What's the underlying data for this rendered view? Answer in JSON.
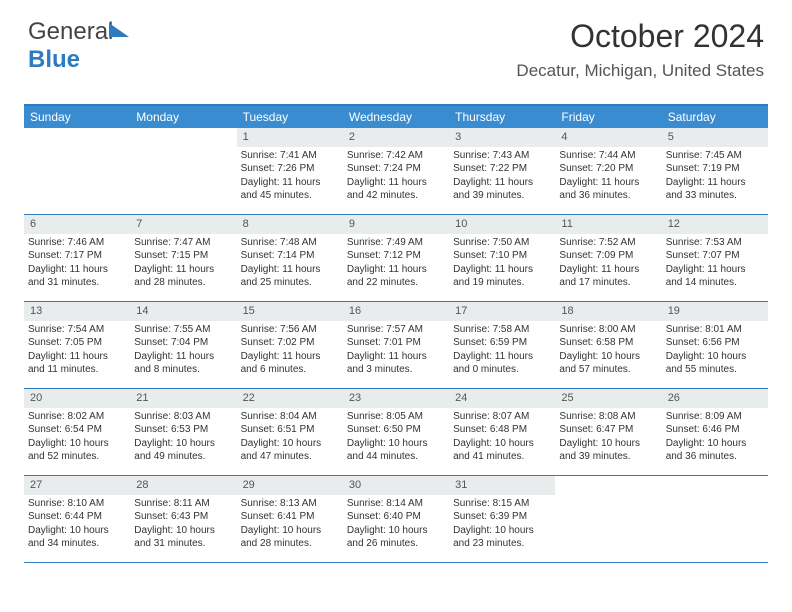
{
  "logo": {
    "part1": "General",
    "part2": "Blue"
  },
  "title": {
    "month": "October 2024",
    "location": "Decatur, Michigan, United States"
  },
  "colors": {
    "header_bg": "#3a8cd1",
    "header_text": "#ffffff",
    "border": "#2f7bbf",
    "daynum_bg": "#e8eced",
    "body_text": "#333333"
  },
  "day_headers": [
    "Sunday",
    "Monday",
    "Tuesday",
    "Wednesday",
    "Thursday",
    "Friday",
    "Saturday"
  ],
  "weeks": [
    [
      {
        "empty": true
      },
      {
        "empty": true
      },
      {
        "num": "1",
        "sunrise": "Sunrise: 7:41 AM",
        "sunset": "Sunset: 7:26 PM",
        "daylight": "Daylight: 11 hours and 45 minutes."
      },
      {
        "num": "2",
        "sunrise": "Sunrise: 7:42 AM",
        "sunset": "Sunset: 7:24 PM",
        "daylight": "Daylight: 11 hours and 42 minutes."
      },
      {
        "num": "3",
        "sunrise": "Sunrise: 7:43 AM",
        "sunset": "Sunset: 7:22 PM",
        "daylight": "Daylight: 11 hours and 39 minutes."
      },
      {
        "num": "4",
        "sunrise": "Sunrise: 7:44 AM",
        "sunset": "Sunset: 7:20 PM",
        "daylight": "Daylight: 11 hours and 36 minutes."
      },
      {
        "num": "5",
        "sunrise": "Sunrise: 7:45 AM",
        "sunset": "Sunset: 7:19 PM",
        "daylight": "Daylight: 11 hours and 33 minutes."
      }
    ],
    [
      {
        "num": "6",
        "sunrise": "Sunrise: 7:46 AM",
        "sunset": "Sunset: 7:17 PM",
        "daylight": "Daylight: 11 hours and 31 minutes."
      },
      {
        "num": "7",
        "sunrise": "Sunrise: 7:47 AM",
        "sunset": "Sunset: 7:15 PM",
        "daylight": "Daylight: 11 hours and 28 minutes."
      },
      {
        "num": "8",
        "sunrise": "Sunrise: 7:48 AM",
        "sunset": "Sunset: 7:14 PM",
        "daylight": "Daylight: 11 hours and 25 minutes."
      },
      {
        "num": "9",
        "sunrise": "Sunrise: 7:49 AM",
        "sunset": "Sunset: 7:12 PM",
        "daylight": "Daylight: 11 hours and 22 minutes."
      },
      {
        "num": "10",
        "sunrise": "Sunrise: 7:50 AM",
        "sunset": "Sunset: 7:10 PM",
        "daylight": "Daylight: 11 hours and 19 minutes."
      },
      {
        "num": "11",
        "sunrise": "Sunrise: 7:52 AM",
        "sunset": "Sunset: 7:09 PM",
        "daylight": "Daylight: 11 hours and 17 minutes."
      },
      {
        "num": "12",
        "sunrise": "Sunrise: 7:53 AM",
        "sunset": "Sunset: 7:07 PM",
        "daylight": "Daylight: 11 hours and 14 minutes."
      }
    ],
    [
      {
        "num": "13",
        "sunrise": "Sunrise: 7:54 AM",
        "sunset": "Sunset: 7:05 PM",
        "daylight": "Daylight: 11 hours and 11 minutes."
      },
      {
        "num": "14",
        "sunrise": "Sunrise: 7:55 AM",
        "sunset": "Sunset: 7:04 PM",
        "daylight": "Daylight: 11 hours and 8 minutes."
      },
      {
        "num": "15",
        "sunrise": "Sunrise: 7:56 AM",
        "sunset": "Sunset: 7:02 PM",
        "daylight": "Daylight: 11 hours and 6 minutes."
      },
      {
        "num": "16",
        "sunrise": "Sunrise: 7:57 AM",
        "sunset": "Sunset: 7:01 PM",
        "daylight": "Daylight: 11 hours and 3 minutes."
      },
      {
        "num": "17",
        "sunrise": "Sunrise: 7:58 AM",
        "sunset": "Sunset: 6:59 PM",
        "daylight": "Daylight: 11 hours and 0 minutes."
      },
      {
        "num": "18",
        "sunrise": "Sunrise: 8:00 AM",
        "sunset": "Sunset: 6:58 PM",
        "daylight": "Daylight: 10 hours and 57 minutes."
      },
      {
        "num": "19",
        "sunrise": "Sunrise: 8:01 AM",
        "sunset": "Sunset: 6:56 PM",
        "daylight": "Daylight: 10 hours and 55 minutes."
      }
    ],
    [
      {
        "num": "20",
        "sunrise": "Sunrise: 8:02 AM",
        "sunset": "Sunset: 6:54 PM",
        "daylight": "Daylight: 10 hours and 52 minutes."
      },
      {
        "num": "21",
        "sunrise": "Sunrise: 8:03 AM",
        "sunset": "Sunset: 6:53 PM",
        "daylight": "Daylight: 10 hours and 49 minutes."
      },
      {
        "num": "22",
        "sunrise": "Sunrise: 8:04 AM",
        "sunset": "Sunset: 6:51 PM",
        "daylight": "Daylight: 10 hours and 47 minutes."
      },
      {
        "num": "23",
        "sunrise": "Sunrise: 8:05 AM",
        "sunset": "Sunset: 6:50 PM",
        "daylight": "Daylight: 10 hours and 44 minutes."
      },
      {
        "num": "24",
        "sunrise": "Sunrise: 8:07 AM",
        "sunset": "Sunset: 6:48 PM",
        "daylight": "Daylight: 10 hours and 41 minutes."
      },
      {
        "num": "25",
        "sunrise": "Sunrise: 8:08 AM",
        "sunset": "Sunset: 6:47 PM",
        "daylight": "Daylight: 10 hours and 39 minutes."
      },
      {
        "num": "26",
        "sunrise": "Sunrise: 8:09 AM",
        "sunset": "Sunset: 6:46 PM",
        "daylight": "Daylight: 10 hours and 36 minutes."
      }
    ],
    [
      {
        "num": "27",
        "sunrise": "Sunrise: 8:10 AM",
        "sunset": "Sunset: 6:44 PM",
        "daylight": "Daylight: 10 hours and 34 minutes."
      },
      {
        "num": "28",
        "sunrise": "Sunrise: 8:11 AM",
        "sunset": "Sunset: 6:43 PM",
        "daylight": "Daylight: 10 hours and 31 minutes."
      },
      {
        "num": "29",
        "sunrise": "Sunrise: 8:13 AM",
        "sunset": "Sunset: 6:41 PM",
        "daylight": "Daylight: 10 hours and 28 minutes."
      },
      {
        "num": "30",
        "sunrise": "Sunrise: 8:14 AM",
        "sunset": "Sunset: 6:40 PM",
        "daylight": "Daylight: 10 hours and 26 minutes."
      },
      {
        "num": "31",
        "sunrise": "Sunrise: 8:15 AM",
        "sunset": "Sunset: 6:39 PM",
        "daylight": "Daylight: 10 hours and 23 minutes."
      },
      {
        "empty": true
      },
      {
        "empty": true
      }
    ]
  ]
}
